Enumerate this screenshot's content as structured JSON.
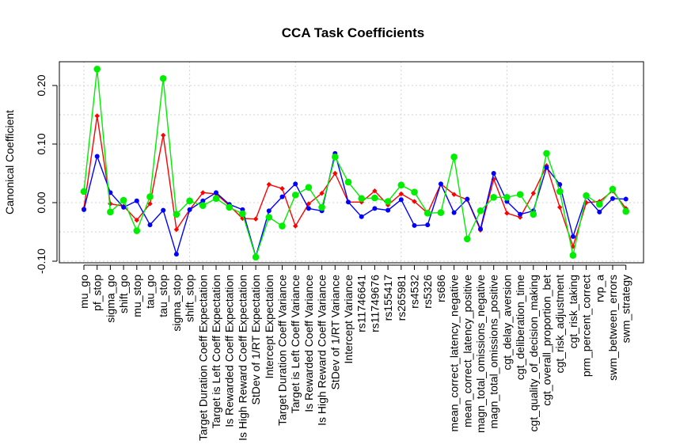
{
  "chart_data": {
    "type": "line",
    "title": "CCA Task Coefficients",
    "xlabel": "",
    "ylabel": "Canonical Coefficient",
    "ylim": [
      -0.1,
      0.23
    ],
    "yticks": [
      -0.1,
      0.0,
      0.1,
      0.2
    ],
    "ytick_labels": [
      "-0.10",
      "0.00",
      "0.10",
      "0.20"
    ],
    "grid": true,
    "legend": "none",
    "categories": [
      "mu_go",
      "pf_stop",
      "sigma_go",
      "shift_go",
      "mu_stop",
      "tau_go",
      "tau_stop",
      "sigma_stop",
      "shift_stop",
      "Target Duration Coeff Expectation",
      "Target is Left Coeff Expectation",
      "Is Rewarded Coeff Expectation",
      "Is High Reward Coeff Expectation",
      "StDev of 1/RT Expectation",
      "Intercept Expectation",
      "Target Duration Coeff Variance",
      "Target is Left Coeff Variance",
      "Is Rewarded Coeff Variance",
      "Is High Reward Coeff Variance",
      "StDev of 1/RT Variance",
      "Intercept Variance",
      "rs11746641",
      "rs11749676",
      "rs155417",
      "rs265981",
      "rs4532",
      "rs5326",
      "rs686",
      "mean_correct_latency_negative",
      "mean_correct_latency_positive",
      "magn_total_omissions_negative",
      "magn_total_omissions_positive",
      "cgt_delay_aversion",
      "cgt_deliberation_time",
      "cgt_quality_of_decision_making",
      "cgt_overall_proportion_bet",
      "cgt_risk_adjustment",
      "cgt_risk_taking",
      "prm_percent_correct",
      "rvp_a",
      "swm_between_errors",
      "swm_strategy"
    ],
    "series": [
      {
        "color": "#ff0000",
        "marker": "diamond",
        "values": [
          -0.01,
          0.148,
          -0.002,
          -0.006,
          -0.03,
          -0.002,
          0.115,
          -0.046,
          -0.012,
          0.017,
          0.015,
          -0.005,
          -0.027,
          -0.028,
          0.031,
          0.024,
          -0.04,
          -0.002,
          0.016,
          0.05,
          0.001,
          0.001,
          0.02,
          -0.004,
          0.015,
          0.002,
          -0.018,
          0.032,
          0.014,
          0.005,
          -0.047,
          0.04,
          -0.018,
          -0.025,
          0.016,
          0.063,
          -0.008,
          -0.075,
          0.0,
          0.002,
          0.02,
          -0.01
        ]
      },
      {
        "color": "#0000ff",
        "marker": "circle",
        "values": [
          -0.012,
          0.079,
          0.017,
          -0.008,
          0.003,
          -0.038,
          -0.013,
          -0.088,
          -0.012,
          0.003,
          0.017,
          -0.003,
          -0.012,
          -0.092,
          -0.014,
          0.01,
          0.032,
          -0.01,
          -0.014,
          0.084,
          0.001,
          -0.024,
          -0.01,
          -0.013,
          0.005,
          -0.039,
          -0.038,
          0.032,
          -0.017,
          0.006,
          -0.045,
          0.05,
          0.002,
          -0.02,
          -0.014,
          0.06,
          0.031,
          -0.058,
          0.01,
          -0.016,
          0.007,
          0.006
        ]
      },
      {
        "color": "#00ee00",
        "marker": "circle",
        "values": [
          0.019,
          0.228,
          -0.016,
          0.004,
          -0.048,
          0.01,
          0.212,
          -0.02,
          0.003,
          -0.005,
          0.007,
          -0.008,
          -0.019,
          -0.093,
          -0.025,
          -0.04,
          0.013,
          0.026,
          -0.008,
          0.078,
          0.035,
          0.007,
          0.008,
          0.002,
          0.03,
          0.018,
          -0.018,
          -0.017,
          0.078,
          -0.062,
          -0.014,
          0.009,
          0.009,
          0.014,
          -0.02,
          0.084,
          0.019,
          -0.09,
          0.012,
          -0.003,
          0.023,
          -0.015
        ]
      }
    ]
  }
}
